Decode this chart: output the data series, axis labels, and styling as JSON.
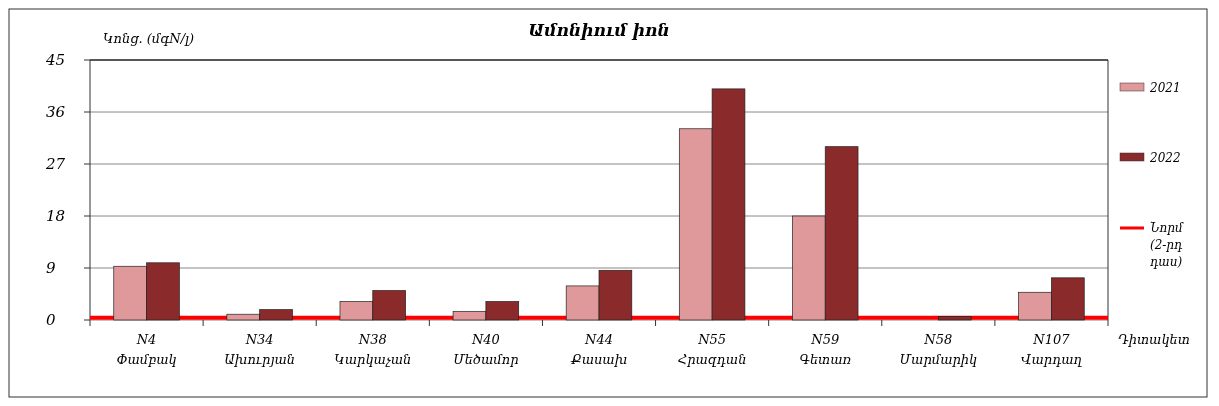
{
  "chart_data": {
    "type": "bar",
    "title": "Ամոնիում իոն",
    "ylabel": "Կոնց. (մգN/լ)",
    "xlabel": "Դիտակետ",
    "categories": [
      "N4\nՓամբակ",
      "N34\nԱխուրյան",
      "N38\nԿարկաչան",
      "N40\nՄեծամոր",
      "N44\nՔասախ",
      "N55\nՀրազդան",
      "N59\nԳետառ",
      "N58\nՄարմարիկ",
      "N107\nՎարդաղ"
    ],
    "series": [
      {
        "name": "2021",
        "color": "#e0999b",
        "values": [
          9.3,
          1.0,
          3.2,
          1.5,
          5.9,
          33.1,
          18.0,
          null,
          4.8
        ]
      },
      {
        "name": "2022",
        "color": "#8b2a2a",
        "values": [
          9.9,
          1.8,
          5.1,
          3.2,
          8.6,
          40.0,
          30.0,
          0.6,
          7.3
        ]
      }
    ],
    "ylim": [
      0,
      45
    ],
    "yticks": [
      0,
      9,
      18,
      27,
      36,
      45
    ],
    "grid": "y",
    "legend": "right",
    "ref_lines": [
      {
        "axis": "y",
        "value": 0.4,
        "label": "Նորմ (2-րդ դաս)",
        "color": "#ff0000"
      }
    ]
  }
}
